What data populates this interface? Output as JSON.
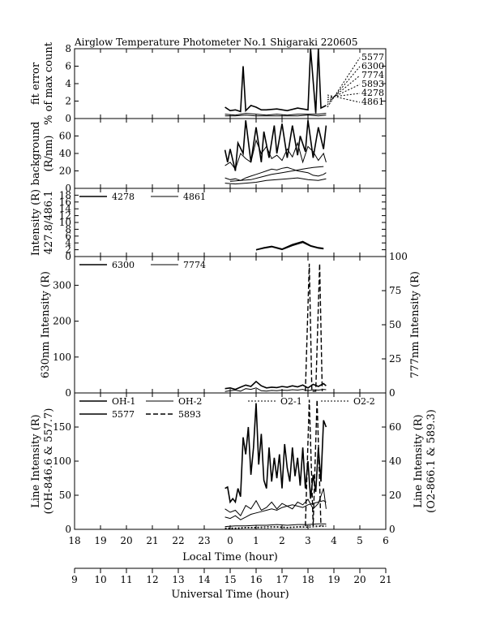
{
  "chart_title": "Airglow Temperature Photometer No.1  Shigaraki  220605",
  "x_axes": {
    "local": {
      "label": "Local Time (hour)",
      "ticks": [
        "18",
        "19",
        "20",
        "21",
        "22",
        "23",
        "0",
        "1",
        "2",
        "3",
        "4",
        "5",
        "6"
      ]
    },
    "universal": {
      "label": "Universal Time (hour)",
      "ticks": [
        "9",
        "10",
        "11",
        "12",
        "13",
        "14",
        "15",
        "16",
        "17",
        "18",
        "19",
        "20",
        "21"
      ]
    }
  },
  "chart_data": [
    {
      "type": "line",
      "id": "fit_error",
      "ylabel": [
        "fit error",
        "% of max count"
      ],
      "ylim": [
        0,
        8
      ],
      "yticks": [
        0,
        2,
        4,
        6,
        8
      ],
      "legend_labels": [
        "5577",
        "6300",
        "7774",
        "5893",
        "4278",
        "4861"
      ],
      "series": [
        {
          "x": [
            14.8,
            15.0,
            15.2,
            15.4,
            15.5,
            15.6,
            15.8,
            16.0,
            16.2,
            16.4,
            16.8,
            17.2,
            17.6,
            18.0,
            18.1,
            18.3,
            18.4,
            18.5,
            18.7
          ],
          "y": [
            1.3,
            0.9,
            1.0,
            0.8,
            6.0,
            0.9,
            1.5,
            1.3,
            1.0,
            1.0,
            1.1,
            0.9,
            1.2,
            1.0,
            8.0,
            0.6,
            8.0,
            1.2,
            1.5
          ]
        },
        {
          "x": [
            14.8,
            15.2,
            15.6,
            16.0,
            16.4,
            16.8,
            17.2,
            17.6,
            18.0,
            18.4,
            18.7
          ],
          "y": [
            0.5,
            0.4,
            0.6,
            0.5,
            0.4,
            0.5,
            0.4,
            0.5,
            0.5,
            0.5,
            0.6
          ]
        },
        {
          "x": [
            14.8,
            15.2,
            15.6,
            16.0,
            16.4,
            16.8,
            17.2,
            17.6,
            18.0,
            18.4,
            18.7
          ],
          "y": [
            0.3,
            0.3,
            0.4,
            0.3,
            0.3,
            0.3,
            0.3,
            0.3,
            0.4,
            0.3,
            0.4
          ]
        }
      ]
    },
    {
      "type": "line",
      "id": "background",
      "ylabel": [
        "background",
        "(R/nm)"
      ],
      "ylim": [
        0,
        80
      ],
      "yticks": [
        0,
        20,
        40,
        60
      ],
      "series": [
        {
          "x": [
            14.8,
            14.9,
            15.0,
            15.2,
            15.3,
            15.5,
            15.6,
            15.8,
            16.0,
            16.2,
            16.3,
            16.5,
            16.7,
            16.8,
            17.0,
            17.2,
            17.4,
            17.6,
            17.7,
            17.9,
            18.0,
            18.2,
            18.4,
            18.6,
            18.7
          ],
          "y": [
            44,
            30,
            45,
            20,
            52,
            40,
            78,
            30,
            70,
            30,
            65,
            35,
            72,
            40,
            74,
            35,
            72,
            38,
            60,
            42,
            78,
            35,
            70,
            45,
            72
          ]
        },
        {
          "x": [
            14.8,
            15.0,
            15.2,
            15.4,
            15.6,
            15.8,
            16.0,
            16.2,
            16.4,
            16.6,
            16.8,
            17.0,
            17.2,
            17.4,
            17.6,
            17.8,
            18.0,
            18.2,
            18.4,
            18.6,
            18.7
          ],
          "y": [
            26,
            30,
            22,
            40,
            34,
            30,
            55,
            40,
            48,
            34,
            38,
            32,
            45,
            36,
            52,
            30,
            48,
            42,
            32,
            40,
            30
          ]
        },
        {
          "x": [
            14.8,
            15.0,
            15.2,
            15.4,
            15.6,
            15.8,
            16.0,
            16.2,
            16.4,
            16.6,
            16.8,
            17.0,
            17.2,
            17.4,
            17.6,
            17.8,
            18.0,
            18.2,
            18.4,
            18.6,
            18.7
          ],
          "y": [
            12,
            10,
            11,
            9,
            12,
            14,
            16,
            18,
            20,
            22,
            21,
            23,
            24,
            22,
            20,
            19,
            18,
            15,
            14,
            16,
            18
          ]
        },
        {
          "x": [
            15.0,
            15.4,
            15.8,
            16.2,
            16.6,
            17.0,
            17.4,
            17.8,
            18.2,
            18.6
          ],
          "y": [
            8,
            9,
            10,
            13,
            16,
            18,
            20,
            22,
            24,
            25
          ]
        },
        {
          "x": [
            14.8,
            15.2,
            15.6,
            16.0,
            16.4,
            16.8,
            17.2,
            17.6,
            18.0,
            18.4,
            18.7
          ],
          "y": [
            6,
            5,
            6,
            7,
            9,
            10,
            11,
            12,
            10,
            9,
            11
          ]
        }
      ]
    },
    {
      "type": "line",
      "id": "intensity_427_486",
      "ylabel": [
        "Intensity (R)",
        "427.8/486.1"
      ],
      "ylim": [
        0,
        20
      ],
      "yticks": [
        0,
        2,
        4,
        6,
        8,
        10,
        12,
        14,
        16,
        18
      ],
      "legend_labels": [
        "4278",
        "4861"
      ],
      "series": [
        {
          "name": "4278",
          "x": [
            16.0,
            16.3,
            16.6,
            17.0,
            17.4,
            17.8,
            18.1,
            18.4,
            18.6
          ],
          "y": [
            2.0,
            2.6,
            3.0,
            2.2,
            3.5,
            4.4,
            3.2,
            2.6,
            2.4
          ]
        },
        {
          "name": "4861",
          "x": [
            16.0,
            16.3,
            16.6,
            17.0,
            17.4,
            17.8,
            18.1,
            18.4,
            18.6
          ],
          "y": [
            1.9,
            2.4,
            2.8,
            2.0,
            3.2,
            4.1,
            3.0,
            2.4,
            2.2
          ]
        }
      ]
    },
    {
      "type": "line",
      "id": "intensity_630_777",
      "ylabel": "630nm Intensity (R)",
      "ylabel_right": "777nm Intensity (R)",
      "ylim": [
        0,
        380
      ],
      "yticks": [
        0,
        100,
        200,
        300
      ],
      "ylim_right": [
        0,
        100
      ],
      "yticks_right": [
        0,
        25,
        50,
        75,
        100
      ],
      "legend_labels": [
        "6300",
        "7774"
      ],
      "series": [
        {
          "name": "6300",
          "x": [
            14.8,
            15.0,
            15.2,
            15.4,
            15.6,
            15.8,
            16.0,
            16.2,
            16.4,
            16.6,
            16.8,
            17.0,
            17.2,
            17.4,
            17.6,
            17.8,
            18.0,
            18.2,
            18.4,
            18.6,
            18.7
          ],
          "y": [
            12,
            14,
            10,
            16,
            22,
            18,
            32,
            20,
            14,
            16,
            15,
            18,
            16,
            20,
            17,
            22,
            14,
            24,
            18,
            26,
            20
          ]
        },
        {
          "name": "7774",
          "x": [
            14.8,
            15.0,
            15.2,
            15.4,
            15.6,
            15.8,
            16.0,
            16.2,
            16.4,
            16.6,
            16.8,
            17.0,
            17.2,
            17.4,
            17.6,
            17.8,
            18.0,
            18.2,
            18.4,
            18.6,
            18.7
          ],
          "y": [
            4,
            6,
            8,
            5,
            12,
            10,
            14,
            6,
            5,
            7,
            6,
            8,
            7,
            9,
            8,
            10,
            6,
            9,
            8,
            10,
            9
          ]
        },
        {
          "x": [
            17.9,
            18.05,
            18.15,
            18.3,
            18.45,
            18.55
          ],
          "y": [
            5,
            360,
            5,
            5,
            360,
            5
          ],
          "dash": "dashed"
        }
      ]
    },
    {
      "type": "line",
      "id": "line_intensity",
      "ylabel": [
        "Line Intensity (R)",
        "(OH-846.6 & 557.7)"
      ],
      "ylabel_right": [
        "Line Intensity (R)",
        "(O2-866.1 & 589.3)"
      ],
      "ylim": [
        0,
        200
      ],
      "yticks": [
        0,
        50,
        100,
        150
      ],
      "ylim_right": [
        0,
        80
      ],
      "yticks_right": [
        0,
        20,
        40,
        60
      ],
      "legend_labels": [
        "OH-1",
        "OH-2",
        "O2-1",
        "O2-2",
        "5577",
        "5893"
      ],
      "series": [
        {
          "name": "5577",
          "x": [
            14.8,
            14.9,
            15.0,
            15.1,
            15.2,
            15.3,
            15.4,
            15.5,
            15.6,
            15.7,
            15.8,
            15.9,
            16.0,
            16.1,
            16.2,
            16.3,
            16.4,
            16.5,
            16.6,
            16.7,
            16.8,
            16.9,
            17.0,
            17.1,
            17.2,
            17.3,
            17.4,
            17.5,
            17.6,
            17.7,
            17.8,
            17.9,
            18.0,
            18.1,
            18.2,
            18.3,
            18.4,
            18.5,
            18.6,
            18.7
          ],
          "y": [
            60,
            62,
            40,
            45,
            40,
            60,
            48,
            135,
            110,
            150,
            80,
            120,
            185,
            95,
            140,
            72,
            60,
            120,
            70,
            105,
            75,
            110,
            60,
            125,
            90,
            70,
            120,
            78,
            105,
            64,
            120,
            60,
            100,
            45,
            80,
            55,
            120,
            70,
            160,
            150
          ]
        },
        {
          "name": "OH-1",
          "x": [
            14.8,
            15.0,
            15.2,
            15.4,
            15.6,
            15.8,
            16.0,
            16.2,
            16.4,
            16.6,
            16.8,
            17.0,
            17.2,
            17.4,
            17.6,
            17.8,
            18.0,
            18.2,
            18.4,
            18.6,
            18.7
          ],
          "y": [
            30,
            25,
            28,
            20,
            35,
            30,
            42,
            28,
            32,
            40,
            30,
            38,
            34,
            30,
            40,
            36,
            44,
            30,
            38,
            60,
            30
          ]
        },
        {
          "name": "OH-2",
          "x": [
            14.8,
            15.0,
            15.2,
            15.4,
            15.6,
            15.8,
            16.0,
            16.2,
            16.4,
            16.6,
            16.8,
            17.0,
            17.2,
            17.4,
            17.6,
            17.8,
            18.0,
            18.2,
            18.4,
            18.6,
            18.7
          ],
          "y": [
            18,
            16,
            20,
            14,
            18,
            22,
            24,
            26,
            28,
            30,
            28,
            32,
            34,
            36,
            34,
            32,
            36,
            38,
            40,
            42,
            40
          ]
        },
        {
          "name": "5893",
          "x": [
            14.8,
            15.2,
            15.6,
            16.0,
            16.4,
            16.8,
            17.2,
            17.6,
            18.0,
            18.4,
            18.7
          ],
          "y": [
            4,
            5,
            5,
            6,
            6,
            7,
            6,
            7,
            7,
            8,
            8
          ]
        },
        {
          "name": "O2-1",
          "x": [
            14.8,
            15.2,
            15.6,
            16.0,
            16.4,
            16.8,
            17.2,
            17.6,
            18.0,
            18.4,
            18.7
          ],
          "y": [
            2,
            2,
            3,
            3,
            4,
            4,
            3,
            4,
            5,
            5,
            6
          ]
        },
        {
          "name": "O2-2",
          "x": [
            14.8,
            15.2,
            15.6,
            16.0,
            16.4,
            16.8,
            17.2,
            17.6,
            18.0,
            18.4,
            18.7
          ],
          "y": [
            1,
            1,
            2,
            2,
            2,
            3,
            2,
            3,
            3,
            4,
            4
          ]
        },
        {
          "x": [
            17.9,
            18.05,
            18.2,
            18.35,
            18.5
          ],
          "y": [
            5,
            190,
            5,
            190,
            5
          ],
          "dash": "dashed"
        }
      ]
    }
  ]
}
